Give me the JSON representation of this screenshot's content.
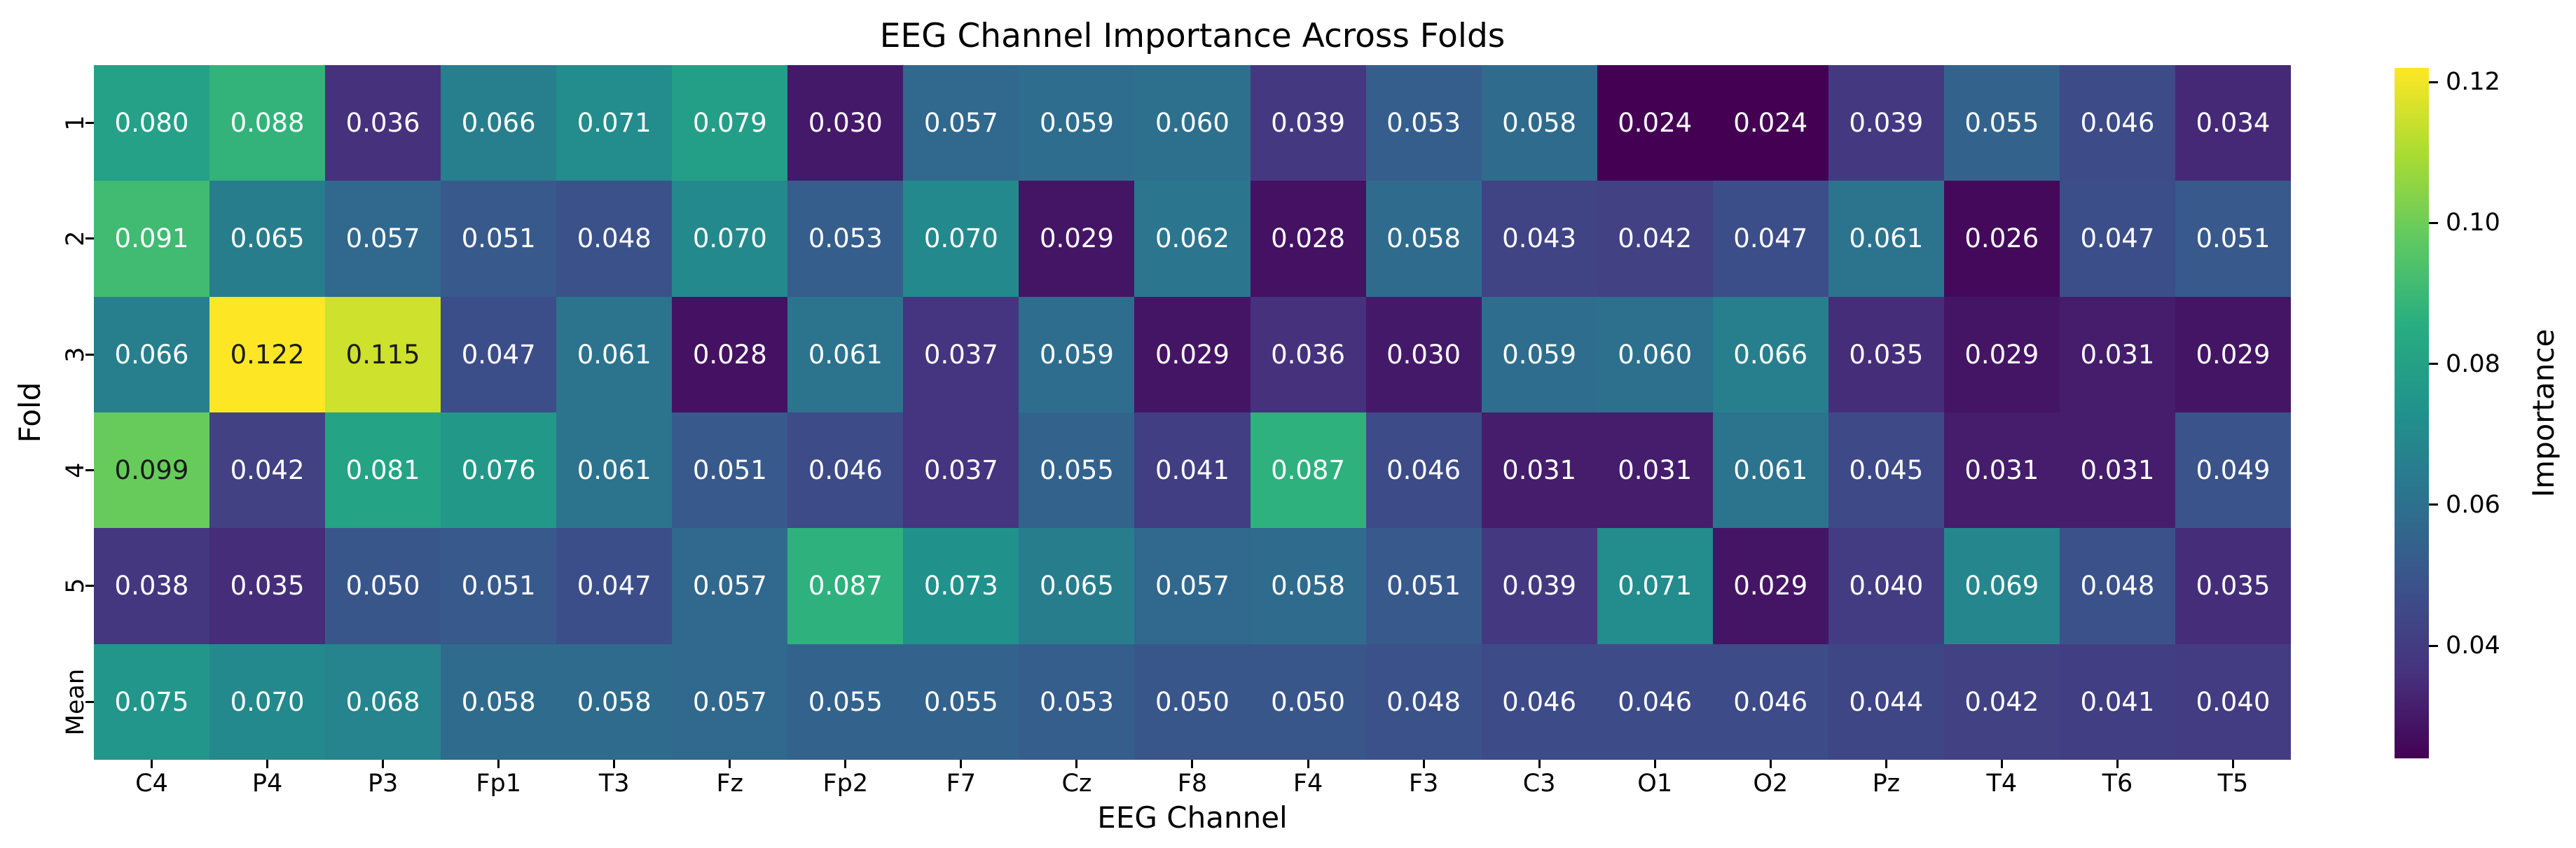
{
  "title": "EEG Channel Importance Across Folds",
  "chart_data": {
    "type": "heatmap",
    "title": "EEG Channel Importance Across Folds",
    "xlabel": "EEG Channel",
    "ylabel": "Fold",
    "colorbar_label": "Importance",
    "colorbar_ticks": [
      0.04,
      0.06,
      0.08,
      0.1,
      0.12
    ],
    "colormap": "viridis",
    "vmin": 0.024,
    "vmax": 0.122,
    "annotation_decimals": 3,
    "columns": [
      "C4",
      "P4",
      "P3",
      "Fp1",
      "T3",
      "Fz",
      "Fp2",
      "F7",
      "Cz",
      "F8",
      "F4",
      "F3",
      "C3",
      "O1",
      "O2",
      "Pz",
      "T4",
      "T6",
      "T5"
    ],
    "rows": [
      "1",
      "2",
      "3",
      "4",
      "5",
      "Mean"
    ],
    "values": [
      [
        0.08,
        0.088,
        0.036,
        0.066,
        0.071,
        0.079,
        0.03,
        0.057,
        0.059,
        0.06,
        0.039,
        0.053,
        0.058,
        0.024,
        0.024,
        0.039,
        0.055,
        0.046,
        0.034
      ],
      [
        0.091,
        0.065,
        0.057,
        0.051,
        0.048,
        0.07,
        0.053,
        0.07,
        0.029,
        0.062,
        0.028,
        0.058,
        0.043,
        0.042,
        0.047,
        0.061,
        0.026,
        0.047,
        0.051
      ],
      [
        0.066,
        0.122,
        0.115,
        0.047,
        0.061,
        0.028,
        0.061,
        0.037,
        0.059,
        0.029,
        0.036,
        0.03,
        0.059,
        0.06,
        0.066,
        0.035,
        0.029,
        0.031,
        0.029
      ],
      [
        0.099,
        0.042,
        0.081,
        0.076,
        0.061,
        0.051,
        0.046,
        0.037,
        0.055,
        0.041,
        0.087,
        0.046,
        0.031,
        0.031,
        0.061,
        0.045,
        0.031,
        0.031,
        0.049
      ],
      [
        0.038,
        0.035,
        0.05,
        0.051,
        0.047,
        0.057,
        0.087,
        0.073,
        0.065,
        0.057,
        0.058,
        0.051,
        0.039,
        0.071,
        0.029,
        0.04,
        0.069,
        0.048,
        0.035
      ],
      [
        0.075,
        0.07,
        0.068,
        0.058,
        0.058,
        0.057,
        0.055,
        0.055,
        0.053,
        0.05,
        0.05,
        0.048,
        0.046,
        0.046,
        0.046,
        0.044,
        0.042,
        0.041,
        0.04
      ]
    ]
  },
  "colors": {
    "background": "#ffffff",
    "tick_color": "#000000",
    "annot_dark": "#1a1a1a",
    "annot_light": "#ffffff",
    "viridis_anchors": [
      "#440154",
      "#46327e",
      "#3b528b",
      "#2c728e",
      "#21918c",
      "#27ad81",
      "#5ec962",
      "#aadc32",
      "#fde725"
    ]
  }
}
